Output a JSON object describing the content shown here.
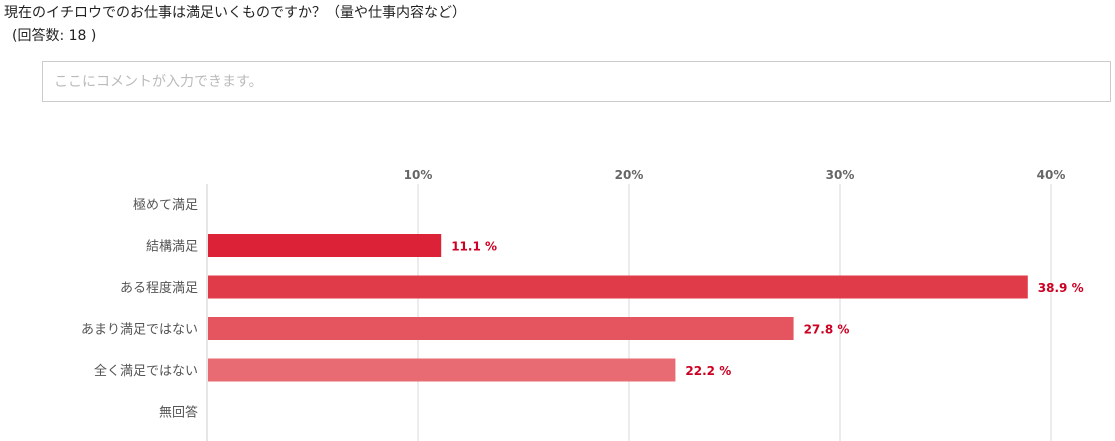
{
  "question": {
    "title": "現在のイチロウでのお仕事は満足いくものですか？（量や仕事内容など）",
    "response_count": "(回答数: 18 )"
  },
  "comment": {
    "placeholder": "ここにコメントが入力できます。",
    "value": ""
  },
  "colors": {
    "bar_colors": [
      "#dc2236",
      "#dc2236",
      "#e03b49",
      "#e5555f",
      "#e86a72",
      "#e86a72"
    ],
    "value_label": "#cc0022",
    "grid": "#d9d9d9",
    "axis": "#cccccc",
    "tick_label": "#666666",
    "category_label": "#555555"
  },
  "chart_data": {
    "type": "bar",
    "orientation": "horizontal",
    "categories": [
      "極めて満足",
      "結構満足",
      "ある程度満足",
      "あまり満足ではない",
      "全く満足ではない",
      "無回答"
    ],
    "values": [
      0,
      11.1,
      38.9,
      27.8,
      22.2,
      0
    ],
    "value_labels": [
      "",
      "11.1 %",
      "38.9 %",
      "27.8 %",
      "22.2 %",
      ""
    ],
    "x_ticks": [
      10,
      20,
      30,
      40
    ],
    "x_tick_labels": [
      "10%",
      "20%",
      "30%",
      "40%"
    ],
    "xlim": [
      0,
      40
    ],
    "grid": true,
    "axis_position": "top"
  }
}
